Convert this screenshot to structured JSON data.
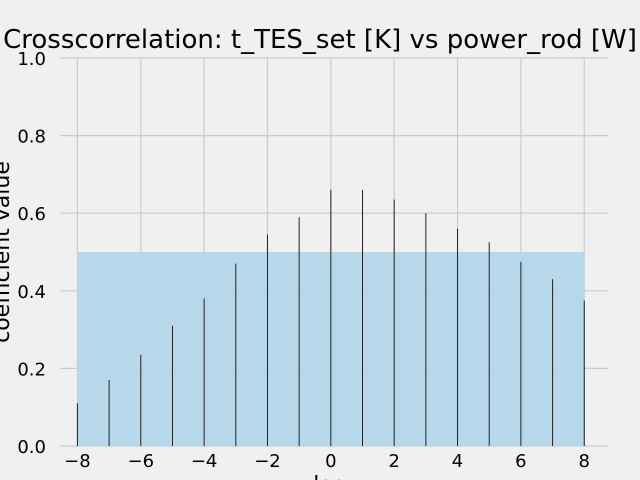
{
  "chart_data": {
    "type": "bar",
    "title": "Crosscorrelation: t_TES_set [K] vs power_rod [W]",
    "xlabel": "lag",
    "ylabel": "coefficient value",
    "xlim": [
      -8,
      8
    ],
    "ylim": [
      0,
      1
    ],
    "x_ticks": [
      "−8",
      "−6",
      "−4",
      "−2",
      "0",
      "2",
      "4",
      "6",
      "8"
    ],
    "y_ticks": [
      "0.0",
      "0.2",
      "0.4",
      "0.6",
      "0.8",
      "1.0"
    ],
    "grid": true,
    "x": [
      -8,
      -7,
      -6,
      -5,
      -4,
      -3,
      -2,
      -1,
      0,
      1,
      2,
      3,
      4,
      5,
      6,
      7,
      8
    ],
    "values": [
      0.11,
      0.17,
      0.235,
      0.31,
      0.38,
      0.47,
      0.545,
      0.59,
      0.66,
      0.66,
      0.635,
      0.6,
      0.56,
      0.525,
      0.475,
      0.43,
      0.375
    ],
    "band": {
      "from": -8,
      "to": 8,
      "low": 0,
      "high": 0.5
    },
    "colors": {
      "background": "#f0f0f0",
      "grid": "#cbcbcb",
      "band": "#b3d6ea",
      "bar": "#222222",
      "text": "#000000"
    }
  }
}
